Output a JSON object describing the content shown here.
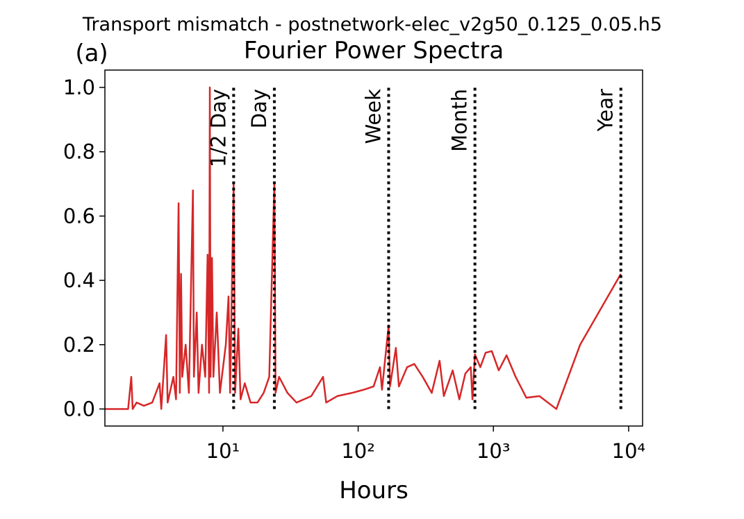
{
  "chart_data": {
    "type": "line",
    "suptitle": "Transport mismatch - postnetwork-elec_v2g50_0.125_0.05.h5",
    "panel_label": "(a)",
    "title": "Fourier Power Spectra",
    "x_label": "Hours",
    "x_scale": "log",
    "xlim": [
      1.34,
      12680
    ],
    "ylim": [
      -0.053,
      1.054
    ],
    "xticks": [
      {
        "value": 10,
        "label": "10¹"
      },
      {
        "value": 100,
        "label": "10²"
      },
      {
        "value": 1000,
        "label": "10³"
      },
      {
        "value": 10000,
        "label": "10⁴"
      }
    ],
    "yticks": [
      {
        "value": 0,
        "label": "0.0"
      },
      0.2,
      0.4,
      0.6,
      0.8,
      {
        "value": 1,
        "label": "1.0"
      }
    ],
    "markers": [
      {
        "value": 12,
        "label": "1/2 Day"
      },
      {
        "value": 24,
        "label": "Day"
      },
      {
        "value": 168,
        "label": "Week"
      },
      {
        "value": 730,
        "label": "Month"
      },
      {
        "value": 8760,
        "label": "Year"
      }
    ],
    "marker_top": 1,
    "series": [
      {
        "color": "#d62728",
        "x": [
          1.34,
          1.99,
          2.1,
          2.15,
          2.3,
          2.6,
          3,
          3.4,
          3.5,
          3.8,
          3.9,
          4.3,
          4.5,
          4.7,
          4.8,
          4.9,
          5.0,
          5.3,
          5.6,
          6.0,
          6.1,
          6.4,
          6.6,
          7.0,
          7.4,
          7.7,
          7.9,
          8.0,
          8.1,
          8.3,
          8.5,
          9.0,
          9.5,
          10.5,
          11.0,
          11.3,
          12,
          12.3,
          13,
          13.5,
          14.5,
          16,
          18,
          20,
          22,
          24,
          24.5,
          26,
          30,
          35,
          45,
          55,
          58,
          70,
          90,
          110,
          130,
          145,
          150,
          168,
          172,
          190,
          200,
          230,
          260,
          300,
          350,
          400,
          430,
          500,
          560,
          620,
          680,
          700,
          730,
          800,
          876,
          973,
          1095,
          1251,
          1460,
          1752,
          2190,
          2920,
          4380,
          8760
        ],
        "values": [
          0,
          0,
          0.1,
          0,
          0.02,
          0.01,
          0.02,
          0.08,
          0,
          0.23,
          0.02,
          0.1,
          0.03,
          0.64,
          0.05,
          0.42,
          0.1,
          0.2,
          0.05,
          0.68,
          0.1,
          0.3,
          0.05,
          0.2,
          0.1,
          0.48,
          0.05,
          1.0,
          0.1,
          0.47,
          0.1,
          0.3,
          0.05,
          0.2,
          0.35,
          0.05,
          0.7,
          0.05,
          0.25,
          0.03,
          0.08,
          0.02,
          0.02,
          0.05,
          0.1,
          0.7,
          0.05,
          0.1,
          0.05,
          0.02,
          0.04,
          0.1,
          0.02,
          0.04,
          0.05,
          0.06,
          0.07,
          0.13,
          0.06,
          0.26,
          0.07,
          0.19,
          0.07,
          0.13,
          0.14,
          0.1,
          0.05,
          0.15,
          0.04,
          0.12,
          0.03,
          0.11,
          0.13,
          0.03,
          0.17,
          0.13,
          0.175,
          0.18,
          0.12,
          0.167,
          0.1,
          0.035,
          0.04,
          0,
          0.2,
          0.42
        ]
      }
    ]
  }
}
